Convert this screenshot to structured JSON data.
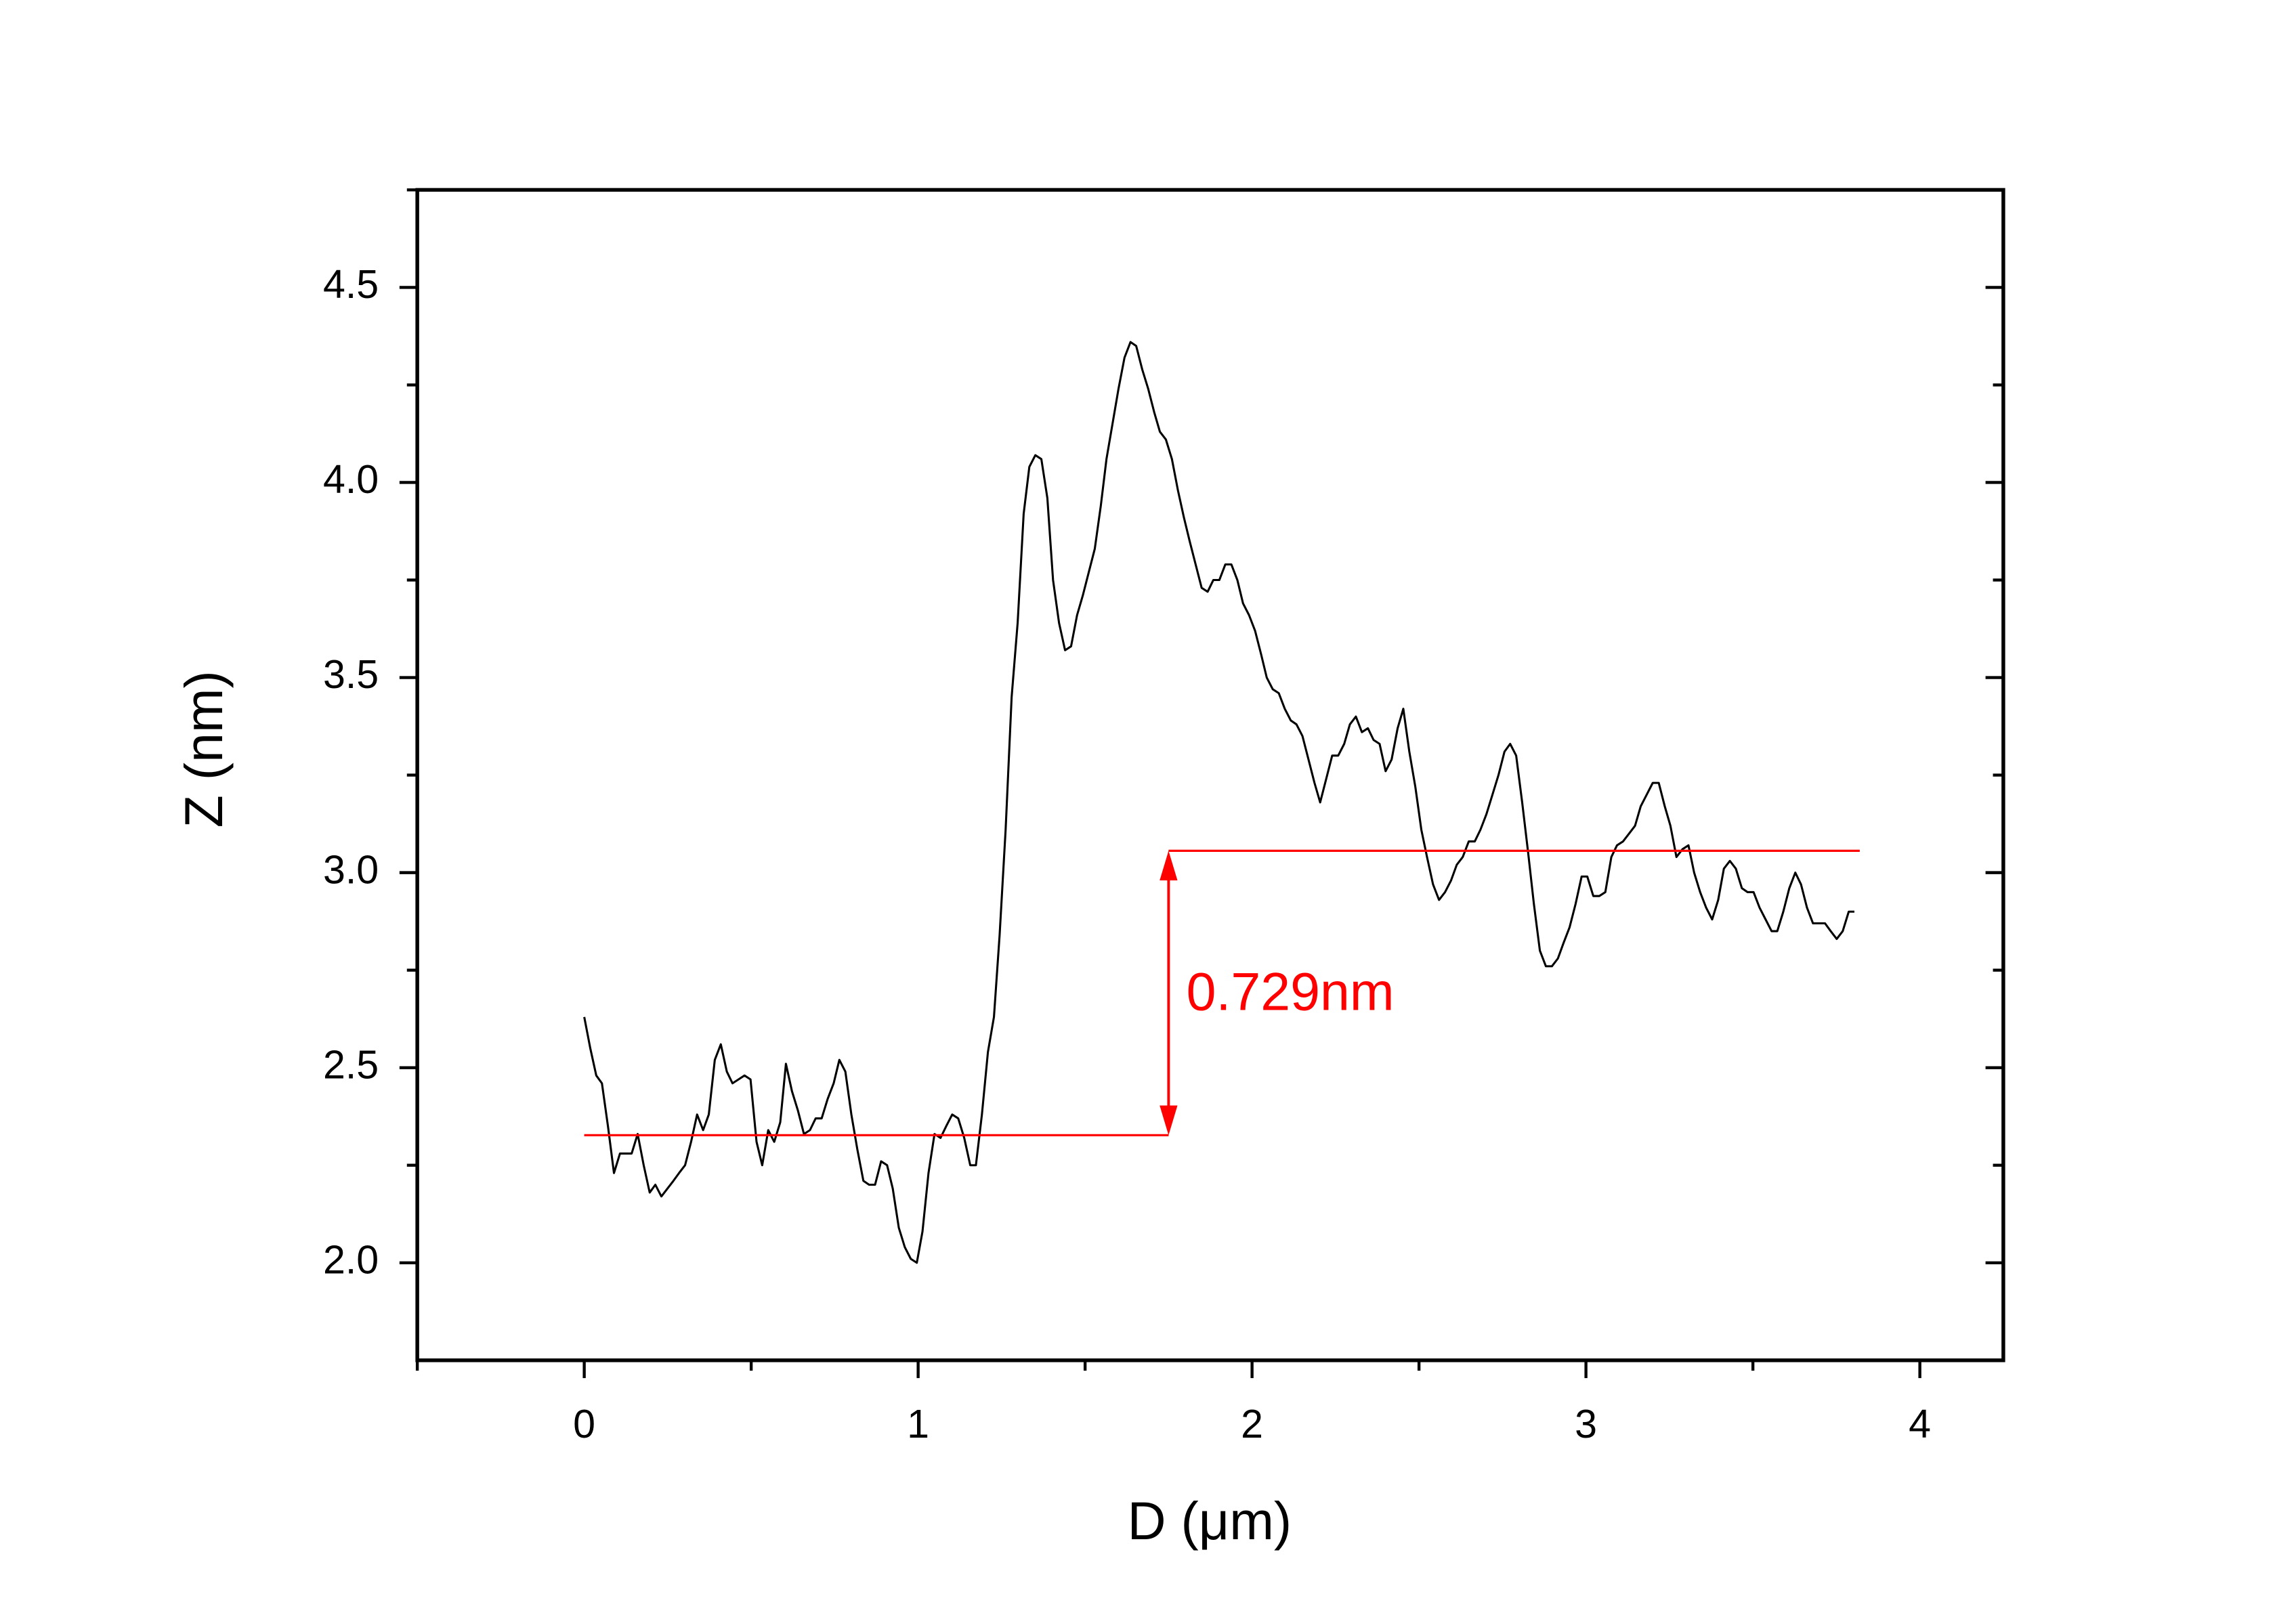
{
  "chart_data": {
    "type": "line",
    "x_label": "D (μm)",
    "y_label": "Z (nm)",
    "xlim": [
      -0.5,
      4.25
    ],
    "ylim": [
      1.75,
      4.75
    ],
    "xticks": [
      0,
      1,
      2,
      3,
      4
    ],
    "xminorticks": [
      -0.5,
      0.5,
      1.5,
      2.5,
      3.5
    ],
    "yticks": [
      {
        "value": 2,
        "label": "2.0"
      },
      2.5,
      {
        "value": 3,
        "label": "3.0"
      },
      3.5,
      {
        "value": 4,
        "label": "4.0"
      },
      4.5
    ],
    "yminorticks": [
      2.25,
      2.75,
      3.25,
      3.75,
      4.25,
      4.75
    ],
    "series": [
      {
        "color": "#000000",
        "x": [
          0,
          0.018,
          0.036,
          0.053,
          0.071,
          0.089,
          0.107,
          0.124,
          0.142,
          0.16,
          0.178,
          0.196,
          0.213,
          0.231,
          0.249,
          0.267,
          0.284,
          0.302,
          0.32,
          0.338,
          0.356,
          0.373,
          0.391,
          0.409,
          0.427,
          0.444,
          0.462,
          0.48,
          0.498,
          0.516,
          0.533,
          0.551,
          0.569,
          0.587,
          0.604,
          0.622,
          0.64,
          0.658,
          0.676,
          0.693,
          0.711,
          0.729,
          0.747,
          0.764,
          0.782,
          0.8,
          0.818,
          0.836,
          0.853,
          0.871,
          0.889,
          0.907,
          0.924,
          0.942,
          0.96,
          0.978,
          0.996,
          1.013,
          1.031,
          1.049,
          1.067,
          1.084,
          1.102,
          1.12,
          1.138,
          1.156,
          1.173,
          1.191,
          1.209,
          1.227,
          1.244,
          1.262,
          1.28,
          1.298,
          1.316,
          1.333,
          1.351,
          1.369,
          1.387,
          1.404,
          1.422,
          1.44,
          1.458,
          1.476,
          1.493,
          1.511,
          1.529,
          1.547,
          1.564,
          1.582,
          1.6,
          1.618,
          1.636,
          1.653,
          1.671,
          1.689,
          1.707,
          1.724,
          1.742,
          1.76,
          1.778,
          1.796,
          1.813,
          1.831,
          1.849,
          1.867,
          1.884,
          1.902,
          1.92,
          1.938,
          1.956,
          1.973,
          1.991,
          2.009,
          2.027,
          2.044,
          2.062,
          2.08,
          2.098,
          2.116,
          2.133,
          2.151,
          2.169,
          2.187,
          2.204,
          2.222,
          2.24,
          2.258,
          2.276,
          2.293,
          2.311,
          2.329,
          2.347,
          2.364,
          2.382,
          2.4,
          2.418,
          2.436,
          2.453,
          2.471,
          2.489,
          2.507,
          2.524,
          2.542,
          2.56,
          2.578,
          2.596,
          2.613,
          2.631,
          2.649,
          2.667,
          2.684,
          2.702,
          2.72,
          2.738,
          2.756,
          2.773,
          2.791,
          2.809,
          2.827,
          2.844,
          2.862,
          2.88,
          2.898,
          2.916,
          2.933,
          2.951,
          2.969,
          2.987,
          3.004,
          3.022,
          3.04,
          3.058,
          3.076,
          3.093,
          3.111,
          3.129,
          3.147,
          3.164,
          3.182,
          3.2,
          3.218,
          3.236,
          3.253,
          3.271,
          3.289,
          3.307,
          3.324,
          3.342,
          3.36,
          3.378,
          3.396,
          3.413,
          3.431,
          3.449,
          3.467,
          3.484,
          3.502,
          3.52,
          3.538,
          3.556,
          3.573,
          3.591,
          3.609,
          3.627,
          3.644,
          3.662,
          3.68,
          3.698,
          3.716,
          3.733,
          3.751,
          3.769,
          3.787,
          3.804
        ],
        "values": [
          2.63,
          2.55,
          2.48,
          2.46,
          2.35,
          2.23,
          2.28,
          2.28,
          2.28,
          2.33,
          2.25,
          2.18,
          2.2,
          2.17,
          2.19,
          2.21,
          2.23,
          2.25,
          2.31,
          2.38,
          2.34,
          2.38,
          2.52,
          2.56,
          2.49,
          2.46,
          2.47,
          2.48,
          2.47,
          2.31,
          2.25,
          2.34,
          2.31,
          2.36,
          2.51,
          2.44,
          2.39,
          2.33,
          2.34,
          2.37,
          2.37,
          2.42,
          2.46,
          2.52,
          2.49,
          2.38,
          2.29,
          2.21,
          2.2,
          2.2,
          2.26,
          2.25,
          2.19,
          2.09,
          2.04,
          2.01,
          2.0,
          2.08,
          2.23,
          2.33,
          2.32,
          2.35,
          2.38,
          2.37,
          2.32,
          2.25,
          2.25,
          2.38,
          2.54,
          2.63,
          2.84,
          3.11,
          3.45,
          3.64,
          3.92,
          4.04,
          4.07,
          4.06,
          3.96,
          3.75,
          3.64,
          3.57,
          3.58,
          3.66,
          3.71,
          3.77,
          3.83,
          3.94,
          4.06,
          4.15,
          4.24,
          4.32,
          4.36,
          4.35,
          4.29,
          4.24,
          4.18,
          4.13,
          4.11,
          4.06,
          3.98,
          3.91,
          3.85,
          3.79,
          3.73,
          3.72,
          3.75,
          3.75,
          3.79,
          3.79,
          3.75,
          3.69,
          3.66,
          3.62,
          3.56,
          3.5,
          3.47,
          3.46,
          3.42,
          3.39,
          3.38,
          3.35,
          3.29,
          3.23,
          3.18,
          3.24,
          3.3,
          3.3,
          3.33,
          3.38,
          3.4,
          3.36,
          3.37,
          3.34,
          3.33,
          3.26,
          3.29,
          3.37,
          3.42,
          3.31,
          3.22,
          3.11,
          3.04,
          2.97,
          2.93,
          2.95,
          2.98,
          3.02,
          3.04,
          3.08,
          3.08,
          3.11,
          3.15,
          3.2,
          3.25,
          3.31,
          3.33,
          3.3,
          3.18,
          3.05,
          2.92,
          2.8,
          2.76,
          2.76,
          2.78,
          2.82,
          2.86,
          2.92,
          2.99,
          2.99,
          2.94,
          2.94,
          2.95,
          3.04,
          3.07,
          3.08,
          3.1,
          3.12,
          3.17,
          3.2,
          3.23,
          3.23,
          3.17,
          3.12,
          3.04,
          3.06,
          3.07,
          3.0,
          2.95,
          2.91,
          2.88,
          2.93,
          3.01,
          3.03,
          3.01,
          2.96,
          2.95,
          2.95,
          2.91,
          2.88,
          2.85,
          2.85,
          2.9,
          2.96,
          3.0,
          2.97,
          2.91,
          2.87,
          2.87,
          2.87,
          2.85,
          2.83,
          2.85,
          2.9,
          2.9
        ]
      }
    ],
    "annotation_color": "#ff0000",
    "reference_lines": [
      {
        "y": 2.327,
        "x": [
          0,
          1.75
        ]
      },
      {
        "y": 3.056,
        "x": [
          1.75,
          3.82
        ]
      }
    ],
    "step_label": "0.729nm"
  }
}
